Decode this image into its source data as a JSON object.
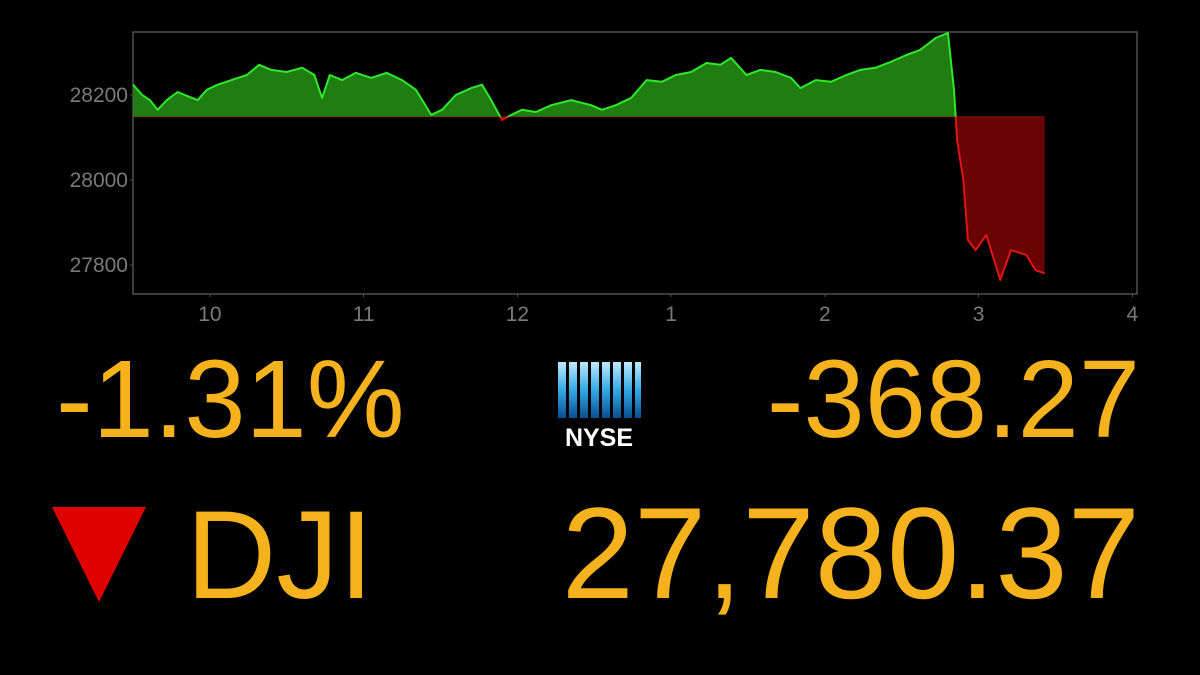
{
  "chart_data": {
    "type": "area",
    "x": [
      9.5,
      9.56,
      9.61,
      9.66,
      9.72,
      9.79,
      9.85,
      9.92,
      9.98,
      10.05,
      10.14,
      10.24,
      10.32,
      10.4,
      10.5,
      10.6,
      10.68,
      10.73,
      10.78,
      10.86,
      10.95,
      11.05,
      11.15,
      11.25,
      11.34,
      11.44,
      11.51,
      11.6,
      11.7,
      11.77,
      11.83,
      11.9,
      11.96,
      12.03,
      12.12,
      12.22,
      12.35,
      12.48,
      12.55,
      12.64,
      12.74,
      12.84,
      12.94,
      13.03,
      13.13,
      13.23,
      13.32,
      13.39,
      13.49,
      13.58,
      13.68,
      13.78,
      13.84,
      13.94,
      14.04,
      14.14,
      14.23,
      14.33,
      14.43,
      14.53,
      14.62,
      14.72,
      14.8,
      14.84,
      14.86,
      14.9,
      14.93,
      14.98,
      15.05,
      15.14,
      15.21,
      15.31,
      15.37,
      15.43
    ],
    "values": [
      28224,
      28200,
      28188,
      28165,
      28188,
      28207,
      28198,
      28188,
      28212,
      28224,
      28235,
      28247,
      28271,
      28259,
      28254,
      28264,
      28247,
      28193,
      28247,
      28235,
      28252,
      28240,
      28252,
      28235,
      28212,
      28153,
      28165,
      28200,
      28216,
      28224,
      28188,
      28141,
      28153,
      28165,
      28160,
      28176,
      28188,
      28176,
      28165,
      28176,
      28193,
      28235,
      28231,
      28247,
      28254,
      28275,
      28271,
      28287,
      28247,
      28259,
      28254,
      28240,
      28216,
      28235,
      28231,
      28247,
      28259,
      28264,
      28278,
      28294,
      28306,
      28334,
      28346,
      28212,
      28094,
      28000,
      27859,
      27835,
      27871,
      27765,
      27835,
      27824,
      27788,
      27780.37
    ],
    "baseline": 28148.64,
    "up_color": "#1f7d12",
    "up_line_color": "#2ee82a",
    "down_color": "#6a0303",
    "down_line_color": "#e01414",
    "xlim": [
      9.5,
      16.03
    ],
    "xticks": [
      {
        "value": 10,
        "label": "10"
      },
      {
        "value": 11,
        "label": "11"
      },
      {
        "value": 12,
        "label": "12"
      },
      {
        "value": 13,
        "label": "1"
      },
      {
        "value": 14,
        "label": "2"
      },
      {
        "value": 15,
        "label": "3"
      },
      {
        "value": 16,
        "label": "4"
      }
    ],
    "ylim": [
      27732,
      28348
    ],
    "yticks": [
      27800,
      28000,
      28200
    ]
  },
  "ticker": {
    "percent_change": "-1.31%",
    "exchange": "NYSE",
    "points_change": "-368.27",
    "symbol": "DJI",
    "value": "27,780.37"
  }
}
